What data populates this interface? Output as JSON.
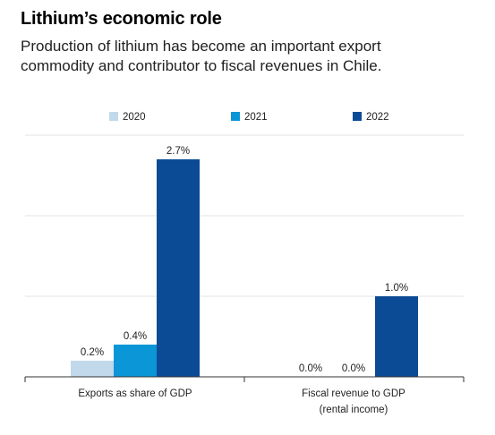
{
  "header": {
    "title": "Lithium’s economic role",
    "subtitle_lines": [
      "Production of lithium has become an important export",
      "commodity and contributor to fiscal revenues in Chile."
    ]
  },
  "chart_data": {
    "type": "bar",
    "categories": [
      [
        "Exports as share of GDP"
      ],
      [
        "Fiscal revenue to GDP",
        "(rental income)"
      ]
    ],
    "series": [
      {
        "name": "2020",
        "color": "#c1d9ea",
        "values": [
          0.2,
          0.0
        ],
        "labels": [
          "0.2%",
          "0.0%"
        ]
      },
      {
        "name": "2021",
        "color": "#0a96d7",
        "values": [
          0.4,
          0.0
        ],
        "labels": [
          "0.4%",
          "0.0%"
        ]
      },
      {
        "name": "2022",
        "color": "#0b4a95",
        "values": [
          2.7,
          1.0
        ],
        "labels": [
          "2.7%",
          "1.0%"
        ]
      }
    ],
    "ylim": [
      0,
      3
    ],
    "grid": true,
    "legend": "top-center",
    "xlabel": "",
    "ylabel": ""
  }
}
